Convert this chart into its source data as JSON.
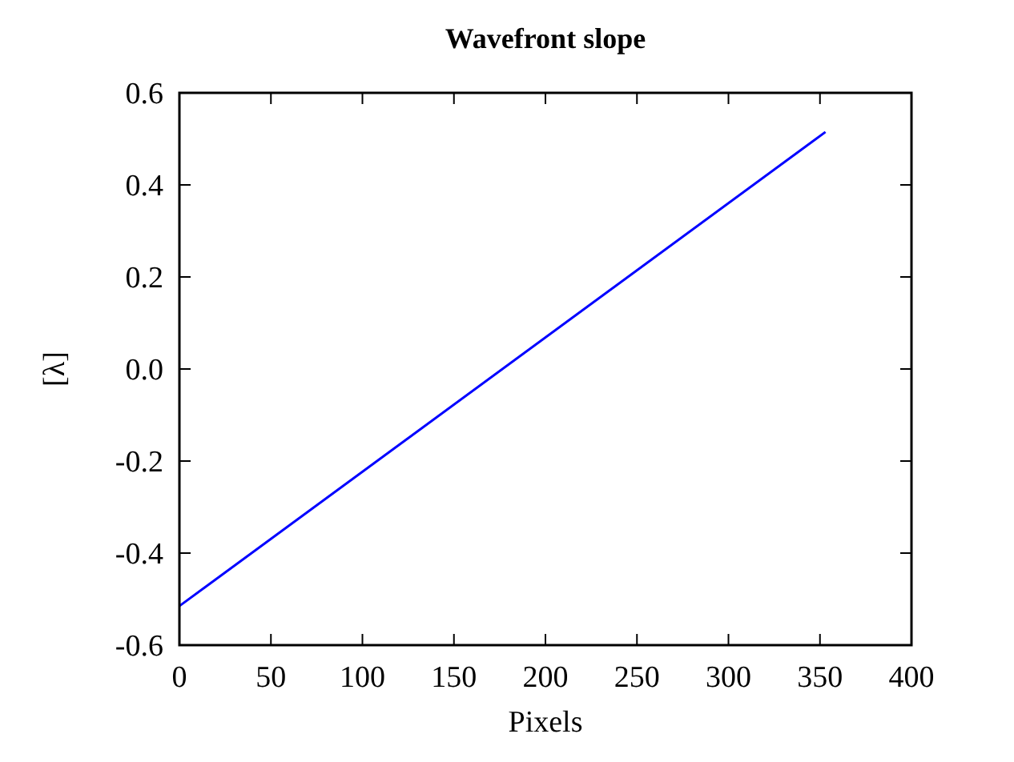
{
  "chart_data": {
    "type": "line",
    "title": "Wavefront slope",
    "xlabel": "Pixels",
    "ylabel": "[λ]",
    "x": [
      0,
      353
    ],
    "series": [
      {
        "color": "#0000ff",
        "values": [
          -0.515,
          0.515
        ]
      }
    ],
    "xlim": [
      0,
      400
    ],
    "xticks": [
      0,
      50,
      100,
      150,
      200,
      250,
      300,
      350,
      400
    ],
    "ylim": [
      -0.6,
      0.6
    ],
    "yticks": [
      {
        "value": -0.6,
        "label": "-0.6"
      },
      {
        "value": -0.4,
        "label": "-0.4"
      },
      {
        "value": -0.2,
        "label": "-0.2"
      },
      {
        "value": 0,
        "label": "0.0"
      },
      {
        "value": 0.2,
        "label": "0.2"
      },
      {
        "value": 0.4,
        "label": "0.4"
      },
      {
        "value": 0.6,
        "label": "0.6"
      }
    ],
    "grid": false,
    "marker": "none",
    "line_style": "solid"
  }
}
